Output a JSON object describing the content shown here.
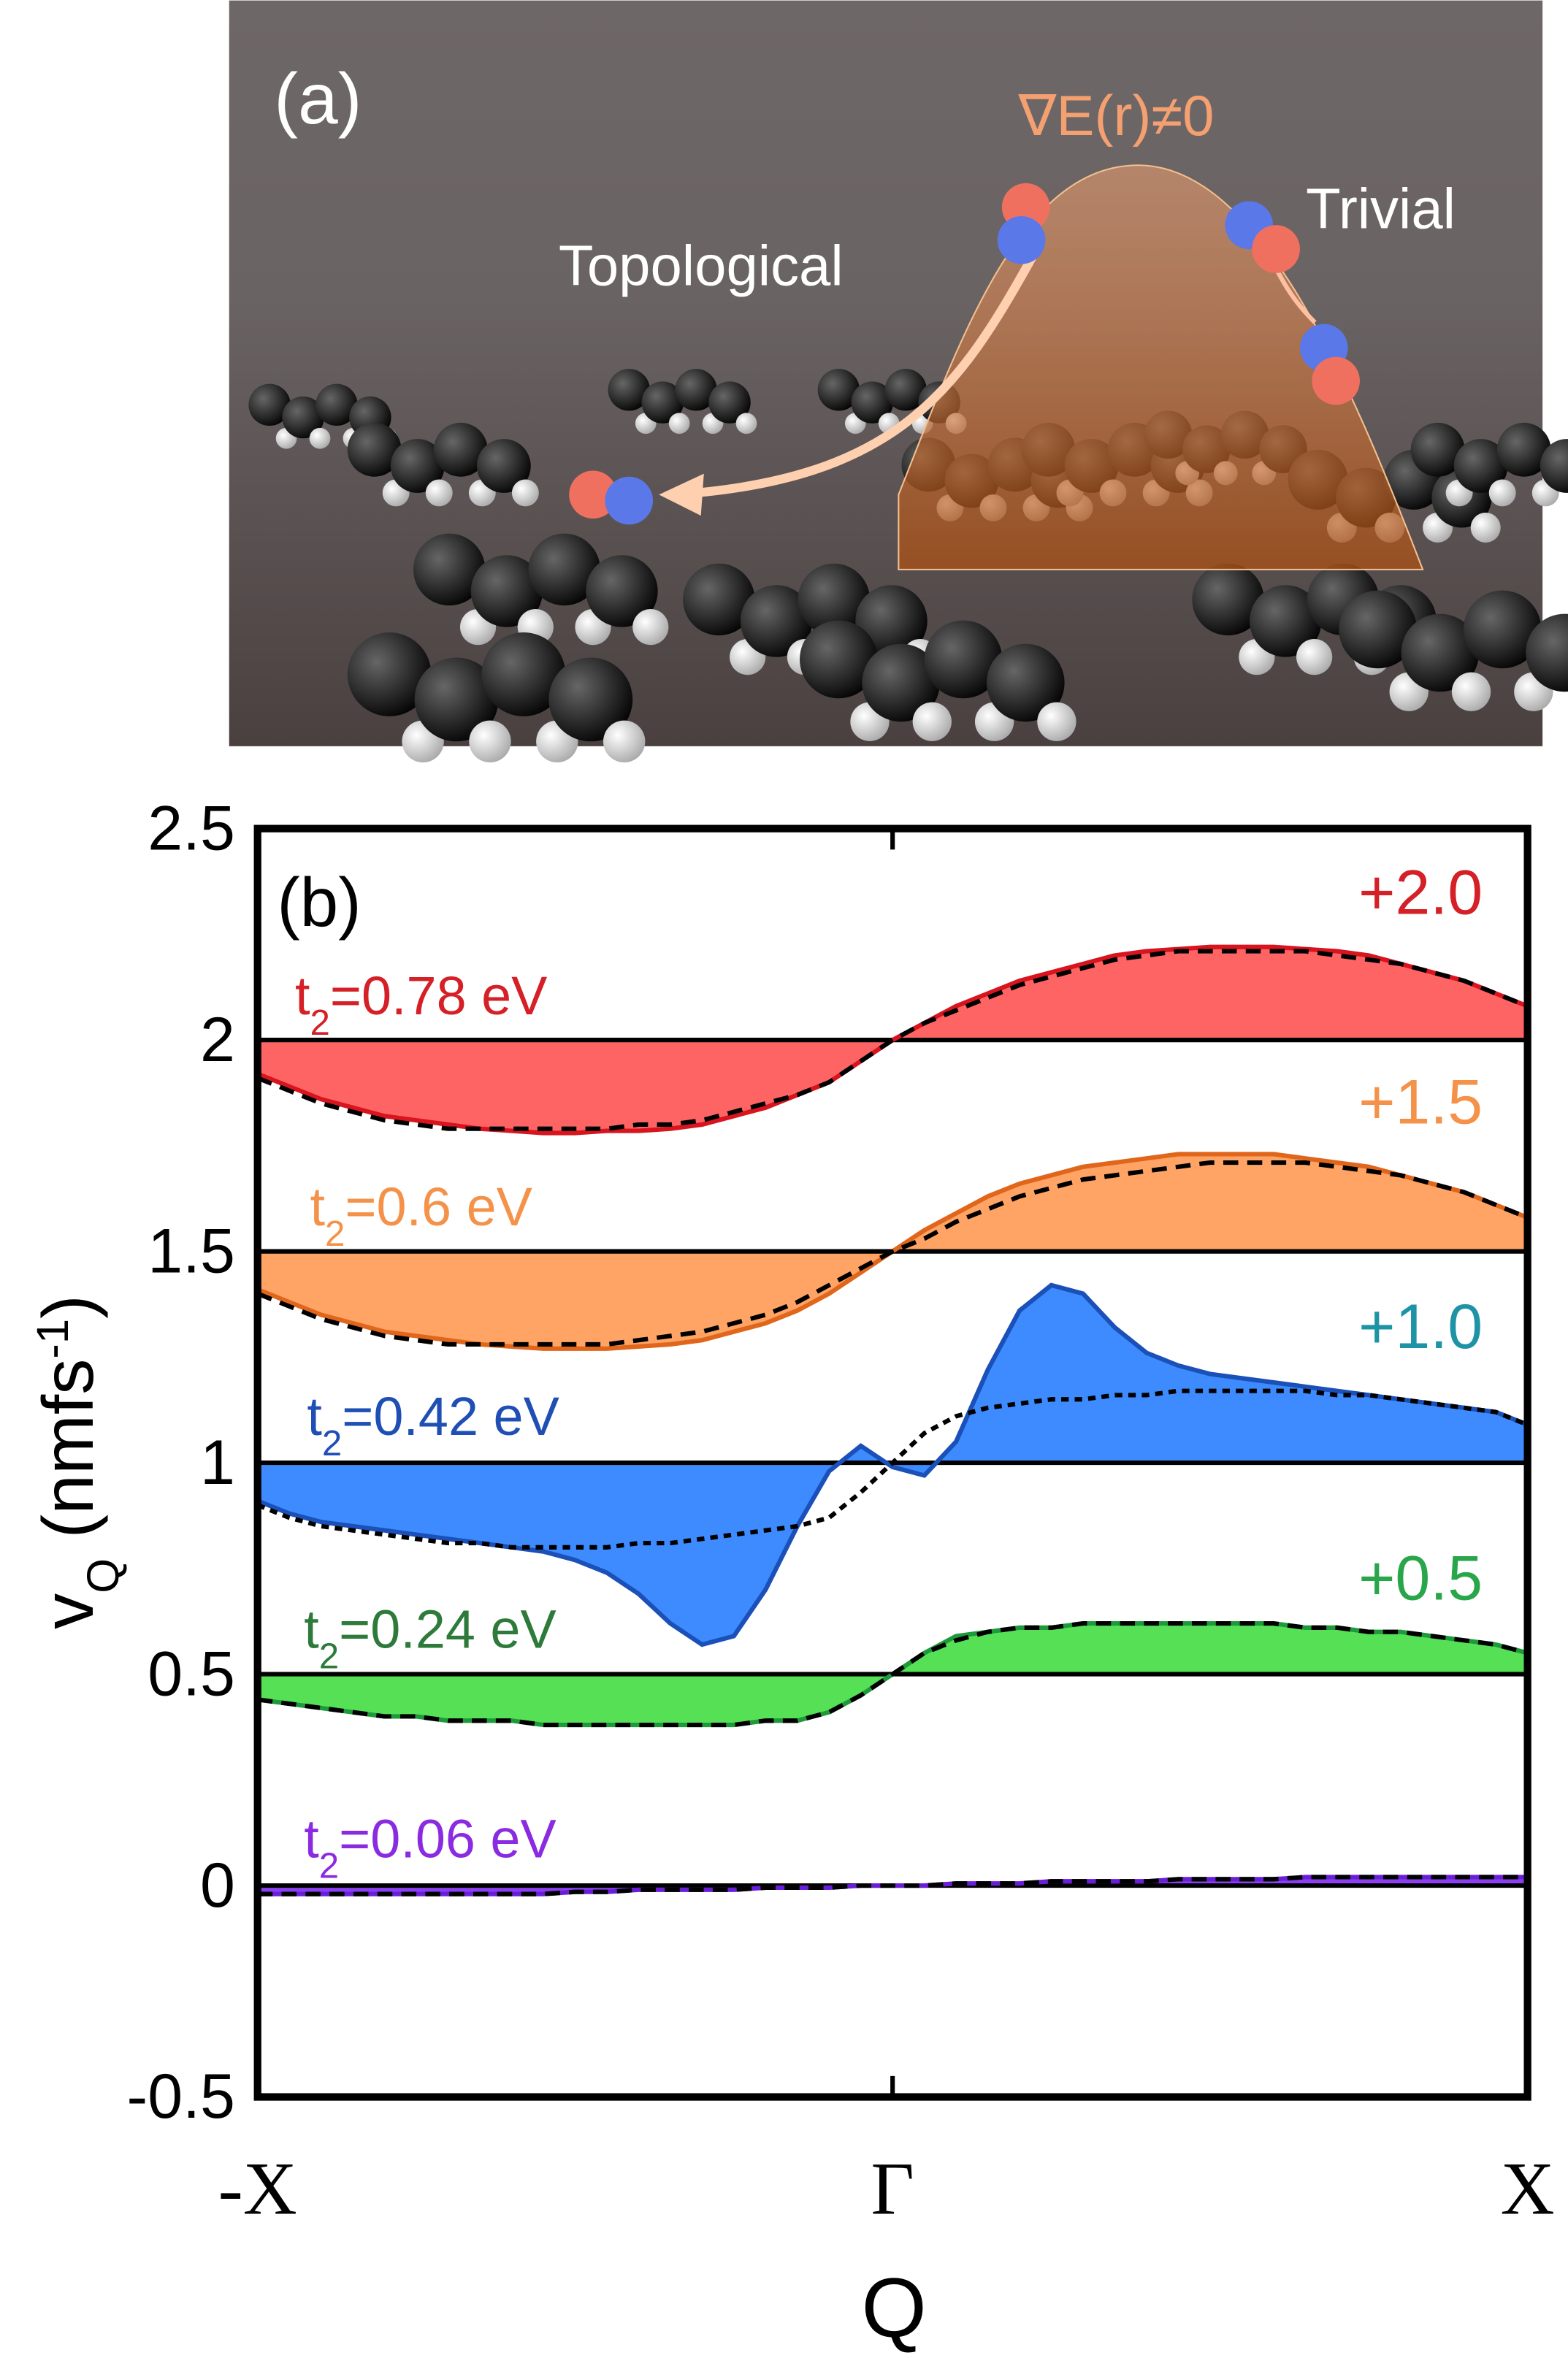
{
  "panel_a": {
    "label": "(a)",
    "gradient_text": "∇E(r)≠0",
    "trivial": "Trivial",
    "topological": "Topological"
  },
  "chart_data": {
    "type": "line",
    "panel_label": "(b)",
    "xlabel": "Q",
    "ylabel": {
      "main": "v",
      "sub": "Q",
      "unit": " (nmfs",
      "sup": "-1",
      "close": ")"
    },
    "xlim": [
      -1,
      1
    ],
    "xticks": [
      {
        "value": -1,
        "label": "-X"
      },
      {
        "value": 0,
        "label": "Γ"
      },
      {
        "value": 1,
        "label": "X"
      }
    ],
    "ylim": [
      -0.5,
      2.5
    ],
    "yticks": [
      2.5,
      2,
      1.5,
      1,
      0.5,
      0,
      -0.5
    ],
    "x": [
      -1,
      -0.95,
      -0.9,
      -0.85,
      -0.8,
      -0.75,
      -0.7,
      -0.65,
      -0.6,
      -0.55,
      -0.5,
      -0.45,
      -0.4,
      -0.35,
      -0.3,
      -0.25,
      -0.2,
      -0.15,
      -0.1,
      -0.05,
      0,
      0.05,
      0.1,
      0.15,
      0.2,
      0.25,
      0.3,
      0.35,
      0.4,
      0.45,
      0.5,
      0.55,
      0.6,
      0.65,
      0.7,
      0.75,
      0.8,
      0.85,
      0.9,
      0.95,
      1
    ],
    "series": [
      {
        "label": {
          "base": "t",
          "sub": "2",
          "rest": "=0.78 eV"
        },
        "offset_label": "+2.0",
        "baseline": 2,
        "color": "#d8141e",
        "fill": "#ff6464",
        "label_color": "#d42026",
        "offset_color": "#d42026",
        "values": [
          1.92,
          1.89,
          1.86,
          1.84,
          1.82,
          1.81,
          1.8,
          1.79,
          1.785,
          1.78,
          1.78,
          1.785,
          1.785,
          1.79,
          1.8,
          1.82,
          1.84,
          1.87,
          1.9,
          1.95,
          2,
          2.04,
          2.08,
          2.11,
          2.14,
          2.16,
          2.18,
          2.2,
          2.21,
          2.215,
          2.22,
          2.22,
          2.22,
          2.215,
          2.21,
          2.2,
          2.18,
          2.16,
          2.14,
          2.11,
          2.08
        ],
        "reference_values": [
          1.91,
          1.88,
          1.85,
          1.83,
          1.81,
          1.8,
          1.79,
          1.79,
          1.79,
          1.79,
          1.79,
          1.79,
          1.8,
          1.8,
          1.81,
          1.83,
          1.85,
          1.87,
          1.9,
          1.95,
          2,
          2.04,
          2.07,
          2.1,
          2.13,
          2.15,
          2.17,
          2.19,
          2.2,
          2.21,
          2.21,
          2.21,
          2.21,
          2.21,
          2.2,
          2.19,
          2.18,
          2.16,
          2.14,
          2.11,
          2.08
        ]
      },
      {
        "label": {
          "base": "t",
          "sub": "2",
          "rest": "=0.6 eV"
        },
        "offset_label": "+1.5",
        "baseline": 1.5,
        "color": "#e0661c",
        "fill": "#ffa465",
        "label_color": "#f5924a",
        "offset_color": "#f5924a",
        "values": [
          1.41,
          1.38,
          1.35,
          1.33,
          1.31,
          1.3,
          1.29,
          1.28,
          1.275,
          1.27,
          1.27,
          1.27,
          1.275,
          1.28,
          1.29,
          1.31,
          1.33,
          1.36,
          1.4,
          1.45,
          1.5,
          1.55,
          1.59,
          1.63,
          1.66,
          1.68,
          1.7,
          1.71,
          1.72,
          1.73,
          1.73,
          1.73,
          1.73,
          1.72,
          1.71,
          1.7,
          1.68,
          1.66,
          1.64,
          1.61,
          1.58
        ],
        "reference_values": [
          1.4,
          1.37,
          1.34,
          1.32,
          1.3,
          1.29,
          1.28,
          1.28,
          1.28,
          1.28,
          1.28,
          1.28,
          1.29,
          1.3,
          1.31,
          1.33,
          1.35,
          1.38,
          1.42,
          1.46,
          1.5,
          1.53,
          1.57,
          1.6,
          1.63,
          1.65,
          1.67,
          1.68,
          1.69,
          1.7,
          1.71,
          1.71,
          1.71,
          1.71,
          1.7,
          1.69,
          1.68,
          1.66,
          1.64,
          1.61,
          1.58
        ]
      },
      {
        "label": {
          "base": "t",
          "sub": "2",
          "rest": "=0.42 eV"
        },
        "offset_label": "+1.0",
        "baseline": 1,
        "color": "#1a50b8",
        "fill": "#3d8bff",
        "label_color": "#1f4fb4",
        "offset_color": "#1e93a6",
        "values": [
          0.91,
          0.88,
          0.86,
          0.85,
          0.84,
          0.83,
          0.82,
          0.81,
          0.8,
          0.79,
          0.77,
          0.74,
          0.69,
          0.62,
          0.57,
          0.59,
          0.7,
          0.85,
          0.98,
          1.04,
          0.99,
          0.97,
          1.05,
          1.22,
          1.36,
          1.42,
          1.4,
          1.32,
          1.26,
          1.23,
          1.21,
          1.2,
          1.19,
          1.18,
          1.17,
          1.16,
          1.15,
          1.14,
          1.13,
          1.12,
          1.09
        ],
        "reference_values": [
          0.9,
          0.87,
          0.85,
          0.84,
          0.83,
          0.82,
          0.81,
          0.81,
          0.8,
          0.8,
          0.8,
          0.8,
          0.81,
          0.81,
          0.82,
          0.83,
          0.84,
          0.85,
          0.87,
          0.93,
          1,
          1.07,
          1.11,
          1.13,
          1.14,
          1.15,
          1.15,
          1.16,
          1.16,
          1.17,
          1.17,
          1.17,
          1.17,
          1.17,
          1.16,
          1.16,
          1.15,
          1.14,
          1.13,
          1.12,
          1.09
        ]
      },
      {
        "label": {
          "base": "t",
          "sub": "2",
          "rest": "=0.24 eV"
        },
        "offset_label": "+0.5",
        "baseline": 0.5,
        "color": "#1f9a3a",
        "fill": "#56e056",
        "label_color": "#2d7a3a",
        "offset_color": "#2aa64a",
        "values": [
          0.44,
          0.43,
          0.42,
          0.41,
          0.4,
          0.4,
          0.39,
          0.39,
          0.39,
          0.38,
          0.38,
          0.38,
          0.38,
          0.38,
          0.38,
          0.38,
          0.39,
          0.39,
          0.41,
          0.45,
          0.5,
          0.55,
          0.59,
          0.6,
          0.61,
          0.61,
          0.62,
          0.62,
          0.62,
          0.62,
          0.62,
          0.62,
          0.62,
          0.61,
          0.61,
          0.6,
          0.6,
          0.59,
          0.58,
          0.57,
          0.55
        ],
        "reference_values": [
          0.44,
          0.43,
          0.42,
          0.41,
          0.4,
          0.4,
          0.39,
          0.39,
          0.39,
          0.38,
          0.38,
          0.38,
          0.38,
          0.38,
          0.38,
          0.38,
          0.39,
          0.39,
          0.41,
          0.45,
          0.5,
          0.55,
          0.58,
          0.6,
          0.61,
          0.61,
          0.62,
          0.62,
          0.62,
          0.62,
          0.62,
          0.62,
          0.62,
          0.61,
          0.61,
          0.6,
          0.6,
          0.59,
          0.58,
          0.57,
          0.55
        ]
      },
      {
        "label": {
          "base": "t",
          "sub": "2",
          "rest": "=0.06 eV"
        },
        "baseline": 0,
        "color": "#6a1fd6",
        "fill": "#8a40f0",
        "label_color": "#8a2be2",
        "values": [
          -0.02,
          -0.02,
          -0.02,
          -0.02,
          -0.02,
          -0.02,
          -0.02,
          -0.02,
          -0.02,
          -0.02,
          -0.015,
          -0.015,
          -0.01,
          -0.01,
          -0.01,
          -0.01,
          -0.005,
          -0.005,
          -0.005,
          0,
          0,
          0,
          0.005,
          0.005,
          0.005,
          0.01,
          0.01,
          0.01,
          0.01,
          0.015,
          0.015,
          0.015,
          0.015,
          0.02,
          0.02,
          0.02,
          0.02,
          0.02,
          0.02,
          0.02,
          0.02
        ],
        "reference_values": [
          -0.02,
          -0.02,
          -0.02,
          -0.02,
          -0.02,
          -0.02,
          -0.02,
          -0.02,
          -0.02,
          -0.02,
          -0.015,
          -0.015,
          -0.01,
          -0.01,
          -0.01,
          -0.01,
          -0.005,
          -0.005,
          -0.005,
          0,
          0,
          0,
          0.005,
          0.005,
          0.005,
          0.01,
          0.01,
          0.01,
          0.01,
          0.015,
          0.015,
          0.015,
          0.015,
          0.02,
          0.02,
          0.02,
          0.02,
          0.02,
          0.02,
          0.02,
          0.02
        ]
      }
    ]
  }
}
